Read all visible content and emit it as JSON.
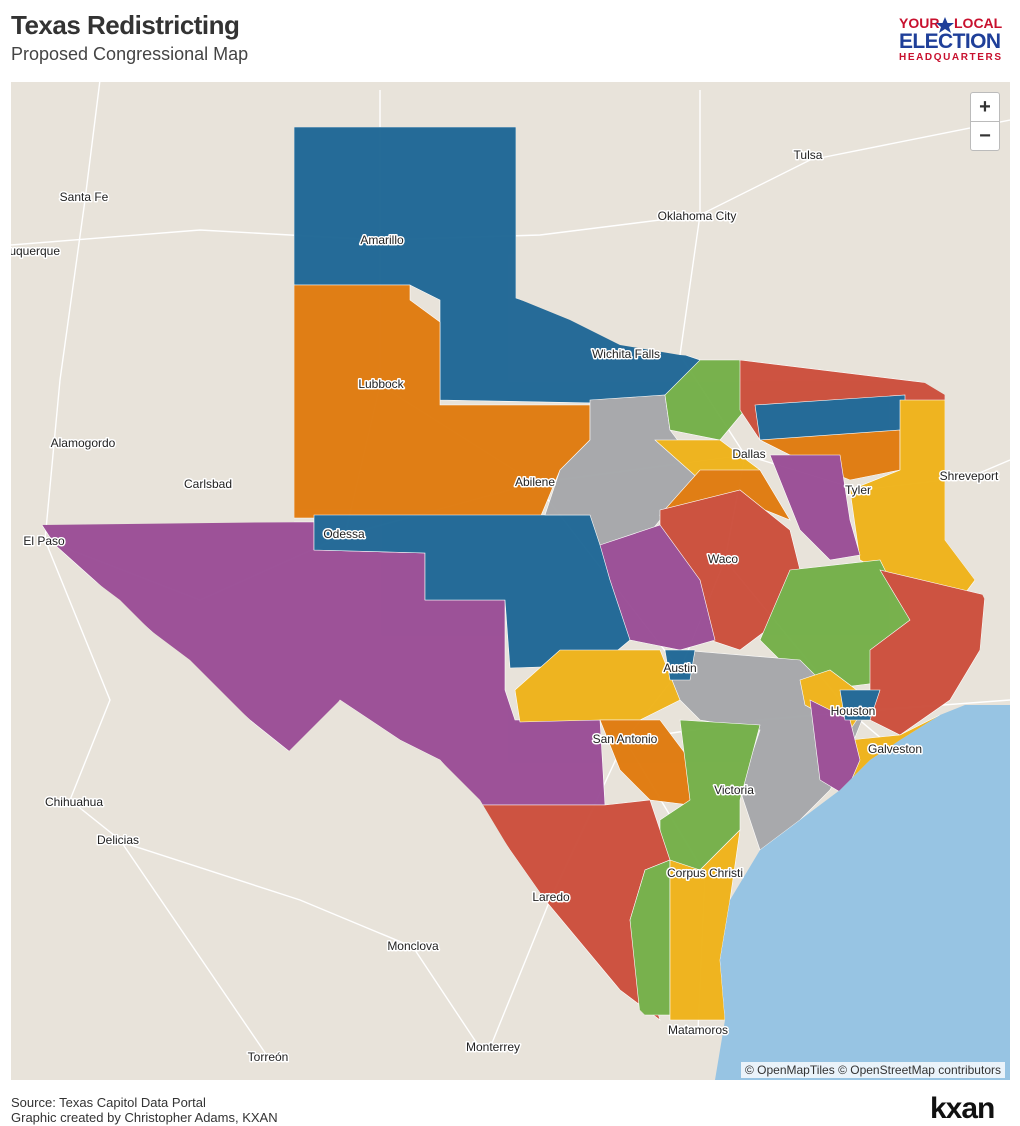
{
  "header": {
    "title": "Texas Redistricting",
    "subtitle": "Proposed Congressional Map",
    "logo": {
      "line1a": "YOUR",
      "line1b": "LOCAL",
      "line2": "ELECTION",
      "line3": "HEADQUARTERS"
    }
  },
  "map": {
    "zoom_in": "+",
    "zoom_out": "−",
    "attribution": "© OpenMapTiles © OpenStreetMap contributors",
    "cities": [
      "Santa Fe",
      "Albuquerque",
      "Amarillo",
      "Oklahoma City",
      "Tulsa",
      "Wichita Falls",
      "Lubbock",
      "Alamogordo",
      "Carlsbad",
      "Abilene",
      "Dallas",
      "Tyler",
      "Shreveport",
      "El Paso",
      "Odessa",
      "Waco",
      "Austin",
      "Houston",
      "San Antonio",
      "Galveston",
      "Victoria",
      "Chihuahua",
      "Delicias",
      "Corpus Christi",
      "Laredo",
      "Monclova",
      "Matamoros",
      "Monterrey",
      "Torreón"
    ]
  },
  "footer": {
    "source": "Source: Texas Capitol Data Portal",
    "credit": "Graphic created by Christopher Adams, KXAN",
    "brand": "kxan"
  }
}
